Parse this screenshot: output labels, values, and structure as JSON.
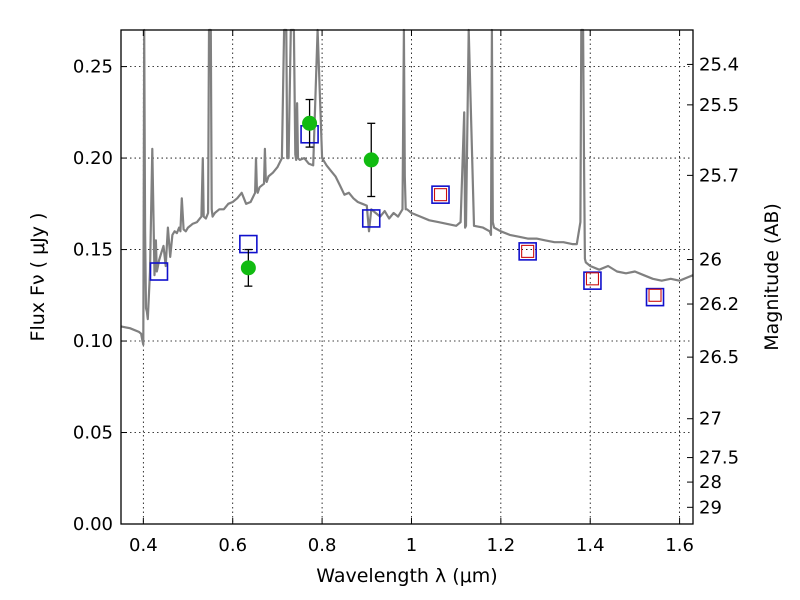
{
  "chart_data": {
    "type": "scatter",
    "xlabel": "Wavelength  λ (μm)",
    "ylabel": "Flux  Fν  ( μJy )",
    "y2label": "Magnitude (AB)",
    "xlim": [
      0.35,
      1.63
    ],
    "ylim": [
      0.0,
      0.27
    ],
    "xticks": [
      0.4,
      0.6,
      0.8,
      1.0,
      1.2,
      1.4,
      1.6
    ],
    "xtick_labels": [
      "0.4",
      "0.6",
      "0.8",
      "1",
      "1.2",
      "1.4",
      "1.6"
    ],
    "yticks": [
      0.0,
      0.05,
      0.1,
      0.15,
      0.2,
      0.25
    ],
    "ytick_labels": [
      "0.00",
      "0.05",
      "0.10",
      "0.15",
      "0.20",
      "0.25"
    ],
    "right_axis_magnitudes": [
      "25.4",
      "25.5",
      "25.7",
      "26",
      "26.2",
      "26.5",
      "27",
      "27.5",
      "28",
      "29"
    ],
    "grid": true,
    "series": [
      {
        "kind": "sed-model-spectrum",
        "color": "#808080",
        "x": [
          0.35,
          0.37,
          0.39,
          0.395,
          0.398,
          0.4,
          0.402,
          0.404,
          0.406,
          0.408,
          0.41,
          0.415,
          0.42,
          0.425,
          0.428,
          0.43,
          0.432,
          0.435,
          0.44,
          0.445,
          0.45,
          0.455,
          0.46,
          0.465,
          0.47,
          0.475,
          0.48,
          0.483,
          0.486,
          0.49,
          0.495,
          0.5,
          0.505,
          0.51,
          0.52,
          0.53,
          0.533,
          0.535,
          0.54,
          0.545,
          0.547,
          0.549,
          0.551,
          0.553,
          0.555,
          0.56,
          0.57,
          0.58,
          0.59,
          0.6,
          0.61,
          0.62,
          0.63,
          0.64,
          0.65,
          0.652,
          0.654,
          0.656,
          0.66,
          0.67,
          0.672,
          0.674,
          0.676,
          0.68,
          0.69,
          0.7,
          0.71,
          0.715,
          0.718,
          0.72,
          0.722,
          0.725,
          0.73,
          0.735,
          0.737,
          0.74,
          0.742,
          0.744,
          0.746,
          0.75,
          0.76,
          0.77,
          0.78,
          0.79,
          0.8,
          0.81,
          0.82,
          0.83,
          0.84,
          0.85,
          0.86,
          0.87,
          0.88,
          0.89,
          0.9,
          0.905,
          0.91,
          0.92,
          0.93,
          0.94,
          0.95,
          0.96,
          0.97,
          0.98,
          0.983,
          0.985,
          0.987,
          0.99,
          1.0,
          1.02,
          1.04,
          1.06,
          1.08,
          1.1,
          1.11,
          1.118,
          1.12,
          1.122,
          1.128,
          1.14,
          1.16,
          1.175,
          1.178,
          1.18,
          1.182,
          1.185,
          1.2,
          1.22,
          1.24,
          1.26,
          1.28,
          1.3,
          1.32,
          1.34,
          1.36,
          1.37,
          1.378,
          1.38,
          1.382,
          1.384,
          1.386,
          1.388,
          1.39,
          1.4,
          1.42,
          1.44,
          1.46,
          1.48,
          1.5,
          1.52,
          1.54,
          1.56,
          1.58,
          1.6,
          1.62,
          1.63
        ],
        "y": [
          0.108,
          0.107,
          0.105,
          0.104,
          0.1,
          0.098,
          0.27,
          0.16,
          0.118,
          0.116,
          0.112,
          0.138,
          0.205,
          0.136,
          0.155,
          0.138,
          0.14,
          0.144,
          0.148,
          0.152,
          0.141,
          0.162,
          0.146,
          0.158,
          0.16,
          0.159,
          0.162,
          0.16,
          0.178,
          0.161,
          0.16,
          0.162,
          0.163,
          0.164,
          0.165,
          0.168,
          0.2,
          0.168,
          0.167,
          0.17,
          0.27,
          0.27,
          0.27,
          0.172,
          0.168,
          0.17,
          0.172,
          0.172,
          0.175,
          0.176,
          0.178,
          0.181,
          0.175,
          0.176,
          0.181,
          0.2,
          0.183,
          0.181,
          0.184,
          0.186,
          0.205,
          0.188,
          0.187,
          0.19,
          0.192,
          0.195,
          0.2,
          0.27,
          0.27,
          0.27,
          0.2,
          0.2,
          0.27,
          0.27,
          0.27,
          0.202,
          0.199,
          0.23,
          0.2,
          0.199,
          0.2,
          0.197,
          0.196,
          0.27,
          0.2,
          0.196,
          0.193,
          0.19,
          0.185,
          0.18,
          0.181,
          0.178,
          0.176,
          0.175,
          0.174,
          0.16,
          0.172,
          0.17,
          0.168,
          0.171,
          0.167,
          0.17,
          0.168,
          0.172,
          0.27,
          0.19,
          0.172,
          0.172,
          0.17,
          0.168,
          0.166,
          0.165,
          0.164,
          0.163,
          0.165,
          0.225,
          0.162,
          0.163,
          0.27,
          0.163,
          0.162,
          0.16,
          0.158,
          0.27,
          0.165,
          0.162,
          0.16,
          0.158,
          0.157,
          0.156,
          0.156,
          0.155,
          0.154,
          0.154,
          0.153,
          0.153,
          0.165,
          0.27,
          0.27,
          0.27,
          0.2,
          0.145,
          0.143,
          0.141,
          0.139,
          0.141,
          0.138,
          0.137,
          0.138,
          0.136,
          0.134,
          0.133,
          0.134,
          0.133,
          0.135,
          0.136
        ]
      },
      {
        "kind": "model-bandpass-points",
        "marker": "square-open",
        "color": "#1010cc",
        "x": [
          0.435,
          0.635,
          0.772,
          0.91,
          1.065,
          1.26,
          1.405,
          1.545
        ],
        "y": [
          0.138,
          0.153,
          0.213,
          0.167,
          0.18,
          0.149,
          0.133,
          0.124
        ]
      },
      {
        "kind": "observed-upper-limits",
        "marker": "square-open-small",
        "color": "#cc1010",
        "x": [
          1.065,
          1.26,
          1.405,
          1.545
        ],
        "y": [
          0.18,
          0.149,
          0.134,
          0.125
        ]
      },
      {
        "kind": "observed-detections",
        "marker": "circle-filled",
        "color": "#11bb11",
        "x": [
          0.635,
          0.772,
          0.91
        ],
        "y": [
          0.14,
          0.219,
          0.199
        ],
        "yerr": [
          0.01,
          0.013,
          0.02
        ]
      }
    ]
  }
}
